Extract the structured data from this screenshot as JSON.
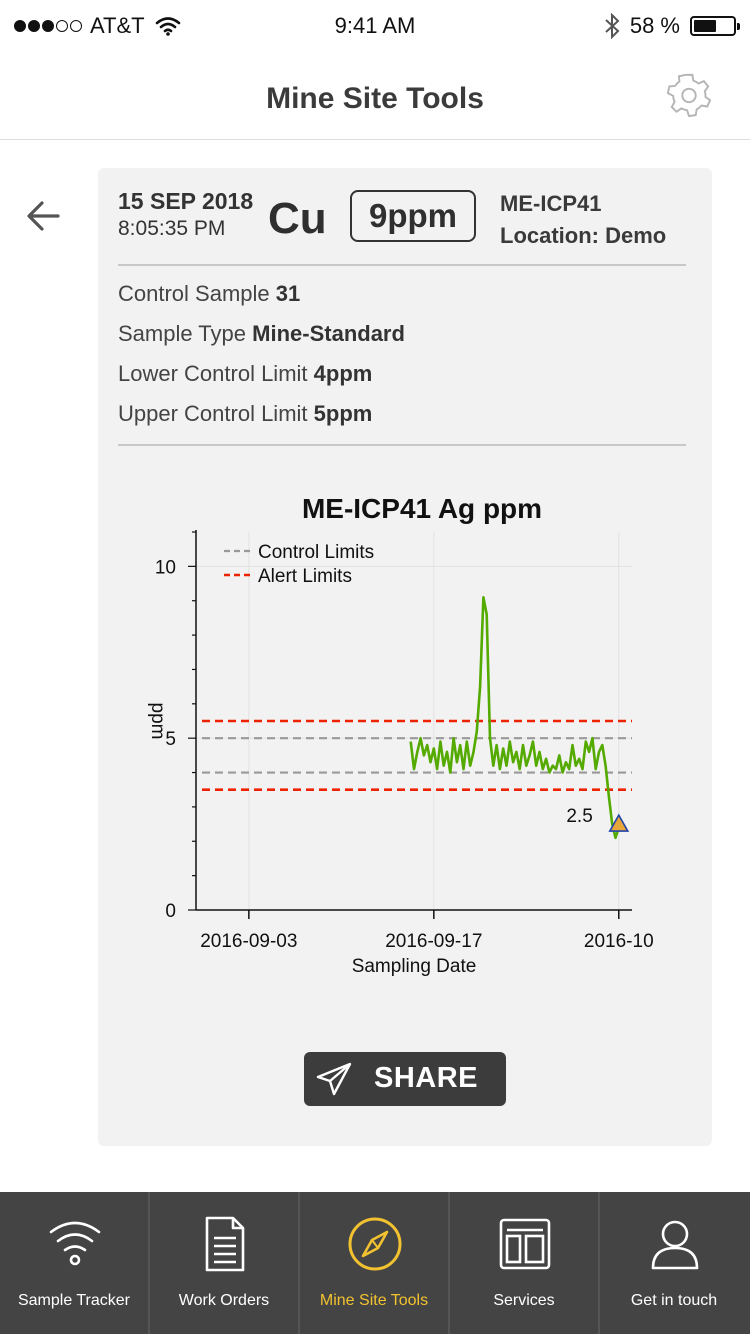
{
  "status_bar": {
    "carrier": "AT&T",
    "time": "9:41 AM",
    "battery": "58 %",
    "battery_level": 0.58
  },
  "header": {
    "title": "Mine Site Tools"
  },
  "sample": {
    "date": "15 SEP 2018",
    "time": "8:05:35 PM",
    "element": "Cu",
    "value": "9ppm",
    "method": "ME-ICP41",
    "location": "Location: Demo",
    "details": [
      {
        "label": "Control Sample",
        "value": "31"
      },
      {
        "label": "Sample Type",
        "value": "Mine-Standard"
      },
      {
        "label": "Lower Control Limit",
        "value": "4ppm"
      },
      {
        "label": "Upper Control Limit",
        "value": "5ppm"
      }
    ]
  },
  "chart_data": {
    "type": "line",
    "title": "ME-ICP41 Ag ppm",
    "xlabel": "Sampling Date",
    "ylabel": "ppm",
    "xlim": [
      "2016-08-30",
      "2016-10-02"
    ],
    "ylim": [
      0,
      11
    ],
    "x_ticks": [
      "2016-09-03",
      "2016-09-17",
      "2016-10"
    ],
    "y_ticks": [
      0,
      5,
      10
    ],
    "grid": true,
    "legend": {
      "placement": "top-left",
      "entries": [
        "Control Limits",
        "Alert Limits"
      ]
    },
    "control_limits": [
      4,
      5
    ],
    "alert_limits": [
      3.5,
      5.5
    ],
    "annotation": {
      "text": "2.5",
      "x": "2016-10-01",
      "y": 2.5
    },
    "colors": {
      "series": "#55aa00",
      "control": "#999999",
      "alert": "#ee2200",
      "marker": "#e8a53a"
    },
    "series": [
      {
        "x": [
          "2016-09-15T06:00",
          "2016-09-15T12:00",
          "2016-09-15T18:00",
          "2016-09-16T00:00",
          "2016-09-16T06:00",
          "2016-09-16T12:00",
          "2016-09-16T18:00",
          "2016-09-17T00:00",
          "2016-09-17T06:00",
          "2016-09-17T12:00",
          "2016-09-17T18:00",
          "2016-09-18T00:00",
          "2016-09-18T06:00",
          "2016-09-18T12:00",
          "2016-09-18T18:00",
          "2016-09-19T00:00",
          "2016-09-19T06:00",
          "2016-09-19T12:00",
          "2016-09-19T18:00",
          "2016-09-20T00:00",
          "2016-09-20T06:00",
          "2016-09-20T12:00",
          "2016-09-20T18:00",
          "2016-09-21T00:00",
          "2016-09-21T06:00",
          "2016-09-21T12:00",
          "2016-09-21T18:00",
          "2016-09-22T00:00",
          "2016-09-22T06:00",
          "2016-09-22T12:00",
          "2016-09-22T18:00",
          "2016-09-23T00:00",
          "2016-09-23T06:00",
          "2016-09-23T12:00",
          "2016-09-23T18:00",
          "2016-09-24T00:00",
          "2016-09-24T06:00",
          "2016-09-24T12:00",
          "2016-09-24T18:00",
          "2016-09-25T00:00",
          "2016-09-25T06:00",
          "2016-09-25T12:00",
          "2016-09-25T18:00",
          "2016-09-26T00:00",
          "2016-09-26T06:00",
          "2016-09-26T12:00",
          "2016-09-26T18:00",
          "2016-09-27T00:00",
          "2016-09-27T06:00",
          "2016-09-27T12:00",
          "2016-09-27T18:00",
          "2016-09-28T00:00",
          "2016-09-28T06:00",
          "2016-09-28T12:00",
          "2016-09-28T18:00",
          "2016-09-29T00:00",
          "2016-09-29T06:00",
          "2016-09-29T12:00",
          "2016-09-29T18:00",
          "2016-09-30T00:00",
          "2016-09-30T06:00",
          "2016-09-30T12:00",
          "2016-09-30T18:00",
          "2016-10-01T00:00",
          "2016-10-01T06:00"
        ],
        "y": [
          4.9,
          4.1,
          4.6,
          5.0,
          4.5,
          4.8,
          4.3,
          4.7,
          4.1,
          4.9,
          4.2,
          4.6,
          4.0,
          5.0,
          4.3,
          4.8,
          4.1,
          4.9,
          4.2,
          4.6,
          5.2,
          6.5,
          9.1,
          8.6,
          5.0,
          4.2,
          4.8,
          4.1,
          4.7,
          4.2,
          4.9,
          4.3,
          4.6,
          4.1,
          4.8,
          4.2,
          4.5,
          4.9,
          4.2,
          4.6,
          4.1,
          4.4,
          4.0,
          4.2,
          4.1,
          4.5,
          4.0,
          4.3,
          4.1,
          4.8,
          4.2,
          4.4,
          4.1,
          4.9,
          4.6,
          5.0,
          4.1,
          4.6,
          4.8,
          4.2,
          3.3,
          2.5,
          2.1,
          2.4,
          2.6
        ]
      }
    ]
  },
  "share": {
    "label": "SHARE"
  },
  "tabs": [
    {
      "label": "Sample Tracker",
      "icon": "wifi-icon"
    },
    {
      "label": "Work Orders",
      "icon": "document-icon"
    },
    {
      "label": "Mine Site Tools",
      "icon": "compass-icon",
      "active": true
    },
    {
      "label": "Services",
      "icon": "layout-icon"
    },
    {
      "label": "Get in touch",
      "icon": "user-icon"
    }
  ]
}
